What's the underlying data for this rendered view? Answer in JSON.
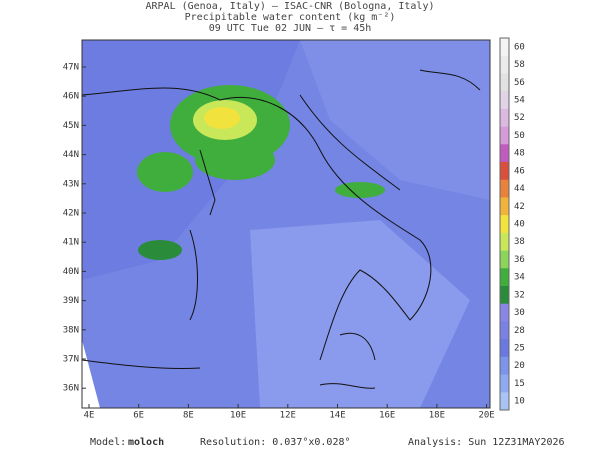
{
  "header": {
    "line1": "ARPAL (Genoa, Italy)  —  ISAC-CNR (Bologna, Italy)",
    "line2": "Precipitable water content (kg m⁻²)",
    "line3": "09 UTC Tue 02 JUN  —  τ = 45h"
  },
  "map": {
    "lat_labels": [
      "47N",
      "46N",
      "45N",
      "44N",
      "43N",
      "42N",
      "41N",
      "40N",
      "39N",
      "38N",
      "37N",
      "36N"
    ],
    "lon_labels": [
      "4E",
      "6E",
      "8E",
      "10E",
      "12E",
      "14E",
      "16E",
      "18E",
      "20E"
    ]
  },
  "colorbar": {
    "labels": [
      "60",
      "58",
      "56",
      "54",
      "52",
      "50",
      "48",
      "46",
      "44",
      "42",
      "40",
      "38",
      "36",
      "34",
      "32",
      "30",
      "28",
      "25",
      "20",
      "15",
      "10"
    ],
    "colors": [
      "#f4f4f4",
      "#ebebeb",
      "#e2e2e2",
      "#e3d3e6",
      "#dcb9e0",
      "#d59ad8",
      "#c05cbf",
      "#d8503c",
      "#e8823a",
      "#f0b43c",
      "#f2e23e",
      "#c8e85a",
      "#8cd45a",
      "#3fae3c",
      "#2a8c3a",
      "#8a86e8",
      "#7a80e4",
      "#6a78e0",
      "#7c94ea",
      "#8eaaf0",
      "#a8c4f4"
    ]
  },
  "footer": {
    "model_label": "Model:",
    "model_name": "moloch",
    "resolution": "Resolution: 0.037°x0.028°",
    "analysis": "Analysis: Sun 12Z31MAY2026"
  }
}
